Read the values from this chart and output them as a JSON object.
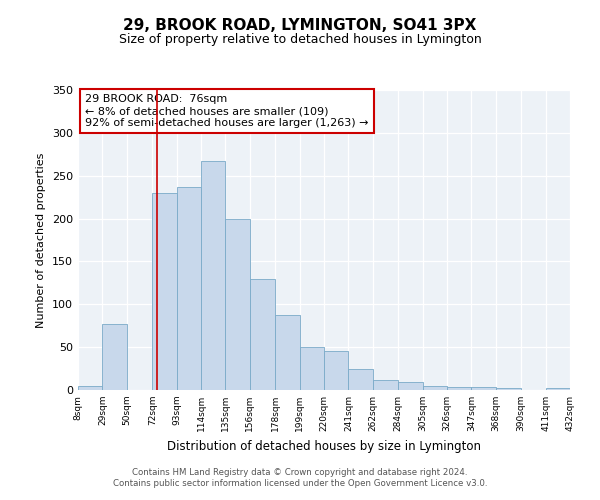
{
  "title": "29, BROOK ROAD, LYMINGTON, SO41 3PX",
  "subtitle": "Size of property relative to detached houses in Lymington",
  "xlabel": "Distribution of detached houses by size in Lymington",
  "ylabel": "Number of detached properties",
  "bin_labels": [
    "8sqm",
    "29sqm",
    "50sqm",
    "72sqm",
    "93sqm",
    "114sqm",
    "135sqm",
    "156sqm",
    "178sqm",
    "199sqm",
    "220sqm",
    "241sqm",
    "262sqm",
    "284sqm",
    "305sqm",
    "326sqm",
    "347sqm",
    "368sqm",
    "390sqm",
    "411sqm",
    "432sqm"
  ],
  "bin_edges": [
    8,
    29,
    50,
    72,
    93,
    114,
    135,
    156,
    178,
    199,
    220,
    241,
    262,
    284,
    305,
    326,
    347,
    368,
    390,
    411,
    432
  ],
  "bar_heights": [
    5,
    77,
    0,
    230,
    237,
    267,
    200,
    130,
    87,
    50,
    46,
    25,
    12,
    9,
    5,
    4,
    4,
    2,
    0,
    2
  ],
  "bar_color": "#c8d8eb",
  "bar_edge_color": "#7aaac8",
  "property_line_x": 76,
  "annotation_title": "29 BROOK ROAD:  76sqm",
  "annotation_line1": "← 8% of detached houses are smaller (109)",
  "annotation_line2": "92% of semi-detached houses are larger (1,263) →",
  "annotation_box_color": "#cc0000",
  "ylim": [
    0,
    350
  ],
  "yticks": [
    0,
    50,
    100,
    150,
    200,
    250,
    300,
    350
  ],
  "footer_line1": "Contains HM Land Registry data © Crown copyright and database right 2024.",
  "footer_line2": "Contains public sector information licensed under the Open Government Licence v3.0.",
  "bg_color": "#edf2f7"
}
